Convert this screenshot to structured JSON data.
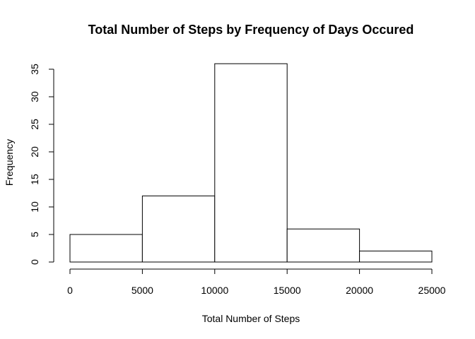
{
  "chart_data": {
    "type": "bar",
    "title": "Total Number of Steps by Frequency of Days Occured",
    "xlabel": "Total Number of Steps",
    "ylabel": "Frequency",
    "bins": [
      {
        "from": 0,
        "to": 5000,
        "value": 5
      },
      {
        "from": 5000,
        "to": 10000,
        "value": 12
      },
      {
        "from": 10000,
        "to": 15000,
        "value": 36
      },
      {
        "from": 15000,
        "to": 20000,
        "value": 6
      },
      {
        "from": 20000,
        "to": 25000,
        "value": 2
      }
    ],
    "xlim": [
      0,
      25000
    ],
    "ylim": [
      0,
      35
    ],
    "x_ticks": [
      0,
      5000,
      10000,
      15000,
      20000,
      25000
    ],
    "y_ticks": [
      0,
      5,
      10,
      15,
      20,
      25,
      30,
      35
    ],
    "grid": false,
    "colors": {
      "bar_fill": "#ffffff",
      "bar_stroke": "#000000"
    }
  }
}
